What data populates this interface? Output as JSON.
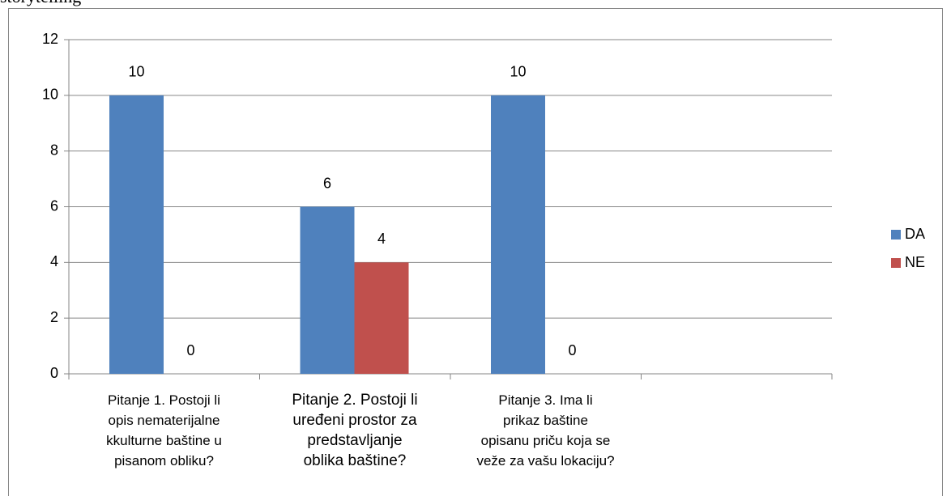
{
  "chart_data": {
    "type": "bar",
    "title": "storytelling",
    "categories": [
      "Pitanje 1. Postoji li\nopis nematerijalne\nkkulturne baštine u\npisanom obliku?",
      "Pitanje 2. Postoji li\nuređeni prostor za\npredstavljanje\noblika baštine?",
      "Pitanje 3.  Ima li\nprikaz baštine\nopisanu priču koja se\nveže za vašu lokaciju?",
      null
    ],
    "series": [
      {
        "name": "DA",
        "color": "#4f81bd",
        "values": [
          10,
          6,
          10,
          null
        ]
      },
      {
        "name": "NE",
        "color": "#c0504d",
        "values": [
          0,
          4,
          0,
          null
        ]
      }
    ],
    "ylim": [
      0,
      12
    ],
    "yticks": [
      0,
      2,
      4,
      6,
      8,
      10,
      12
    ],
    "grid": true,
    "legend": "right"
  }
}
